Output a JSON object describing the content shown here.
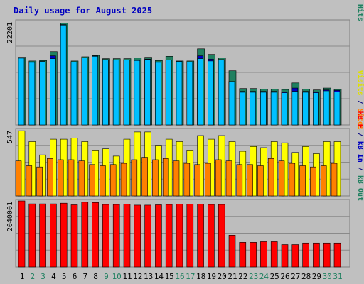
{
  "chart_data": {
    "type": "bar",
    "title": "Daily usage for August 2025",
    "categories": [
      "1",
      "2",
      "3",
      "4",
      "5",
      "6",
      "7",
      "8",
      "9",
      "10",
      "11",
      "12",
      "13",
      "14",
      "15",
      "16",
      "17",
      "18",
      "19",
      "20",
      "21",
      "22",
      "23",
      "24",
      "25",
      "26",
      "27",
      "28",
      "29",
      "30",
      "31"
    ],
    "weekend_days": [
      "2",
      "3",
      "9",
      "10",
      "16",
      "17",
      "23",
      "24",
      "30",
      "31"
    ],
    "panels": [
      {
        "id": "hits",
        "max_label": "22201",
        "ylim": [
          0,
          22201
        ],
        "axis_label_parts": [
          {
            "text": "Pages",
            "color": "#00c0ff"
          },
          {
            "text": " / ",
            "color": "#000080"
          },
          {
            "text": "Files",
            "color": "#0000c0"
          },
          {
            "text": " / ",
            "color": "#000080"
          },
          {
            "text": "Hits",
            "color": "#208060"
          }
        ],
        "series": [
          {
            "name": "Hits",
            "color": "#208060",
            "values": [
              14500,
              13700,
              13800,
              15700,
              21800,
              13700,
              14600,
              14900,
              14200,
              14200,
              14200,
              14400,
              14500,
              13800,
              14700,
              13700,
              13700,
              16300,
              15100,
              14400,
              11600,
              7800,
              7800,
              7700,
              7700,
              7600,
              9000,
              7700,
              7500,
              7900,
              7600
            ]
          },
          {
            "name": "Files",
            "color": "#0000c0",
            "values": [
              14300,
              13500,
              13600,
              14800,
              21500,
              13500,
              14400,
              14800,
              14000,
              13900,
              13900,
              13900,
              14100,
              13500,
              13900,
              13600,
              13500,
              14800,
              14100,
              14000,
              9300,
              7200,
              7200,
              7200,
              7200,
              7100,
              7900,
              7200,
              7100,
              7500,
              7400
            ]
          },
          {
            "name": "Pages",
            "color": "#00c0ff",
            "values": [
              14300,
              13400,
              13600,
              14200,
              21400,
              13500,
              14400,
              14700,
              13900,
              13900,
              13900,
              13800,
              14000,
              13400,
              13900,
              13600,
              13500,
              14200,
              13700,
              13900,
              9300,
              7000,
              7000,
              7000,
              7000,
              6900,
              7200,
              7000,
              6900,
              7300,
              7100
            ]
          }
        ]
      },
      {
        "id": "visits",
        "max_label": "547",
        "ylim": [
          0,
          547
        ],
        "axis_label_parts": [
          {
            "text": "Visits",
            "color": "#e0e000"
          },
          {
            "text": " / ",
            "color": "#000080"
          },
          {
            "text": "Sites",
            "color": "#ff8000"
          }
        ],
        "series": [
          {
            "name": "Visits",
            "color": "#ffff00",
            "values": [
              540,
              450,
              340,
              470,
              470,
              480,
              450,
              380,
              390,
              330,
              470,
              530,
              530,
              420,
              470,
              450,
              380,
              500,
              470,
              500,
              450,
              370,
              410,
              400,
              450,
              440,
              360,
              410,
              350,
              450,
              450
            ]
          },
          {
            "name": "Sites",
            "color": "#ff8000",
            "values": [
              290,
              250,
              240,
              310,
              300,
              300,
              290,
              260,
              250,
              260,
              270,
              300,
              320,
              300,
              310,
              290,
              270,
              260,
              270,
              300,
              290,
              260,
              260,
              250,
              310,
              290,
              270,
              250,
              240,
              250,
              270
            ]
          }
        ]
      },
      {
        "id": "kbytes",
        "max_label": "2040001",
        "ylim": [
          0,
          2040001
        ],
        "axis_label_parts": [
          {
            "text": "kB F",
            "color": "#ff0000"
          },
          {
            "text": " / ",
            "color": "#000080"
          },
          {
            "text": "kB In",
            "color": "#0000c0"
          },
          {
            "text": " / ",
            "color": "#000080"
          },
          {
            "text": "kB Out",
            "color": "#208060"
          }
        ],
        "series": [
          {
            "name": "kB F",
            "color": "#ff0000",
            "values": [
              2040001,
              1950000,
              1950000,
              1950000,
              1970000,
              1920000,
              2000000,
              1990000,
              1930000,
              1930000,
              1940000,
              1910000,
              1910000,
              1920000,
              1930000,
              1940000,
              1940000,
              1940000,
              1930000,
              1930000,
              980000,
              760000,
              760000,
              780000,
              780000,
              690000,
              690000,
              740000,
              740000,
              740000,
              740000
            ]
          },
          {
            "name": "kB In",
            "color": "#0000c0",
            "values": [
              0,
              0,
              0,
              0,
              0,
              0,
              0,
              0,
              0,
              0,
              0,
              0,
              0,
              0,
              0,
              0,
              0,
              0,
              0,
              0,
              0,
              0,
              0,
              0,
              0,
              0,
              0,
              0,
              0,
              0,
              0
            ]
          },
          {
            "name": "kB Out",
            "color": "#208060",
            "values": [
              0,
              0,
              0,
              0,
              0,
              0,
              0,
              0,
              0,
              0,
              0,
              0,
              0,
              0,
              0,
              0,
              0,
              0,
              0,
              0,
              0,
              0,
              0,
              0,
              0,
              0,
              0,
              0,
              0,
              0,
              0
            ]
          }
        ]
      }
    ],
    "colors": {
      "background": "#c0c0c0",
      "plot_background": "#bdbdbd",
      "frame": "#808080",
      "title": "#0000c0",
      "weekday_label": "#000000",
      "weekend_label": "#208060",
      "gridline": "#8a8a8a"
    },
    "grid": true
  }
}
